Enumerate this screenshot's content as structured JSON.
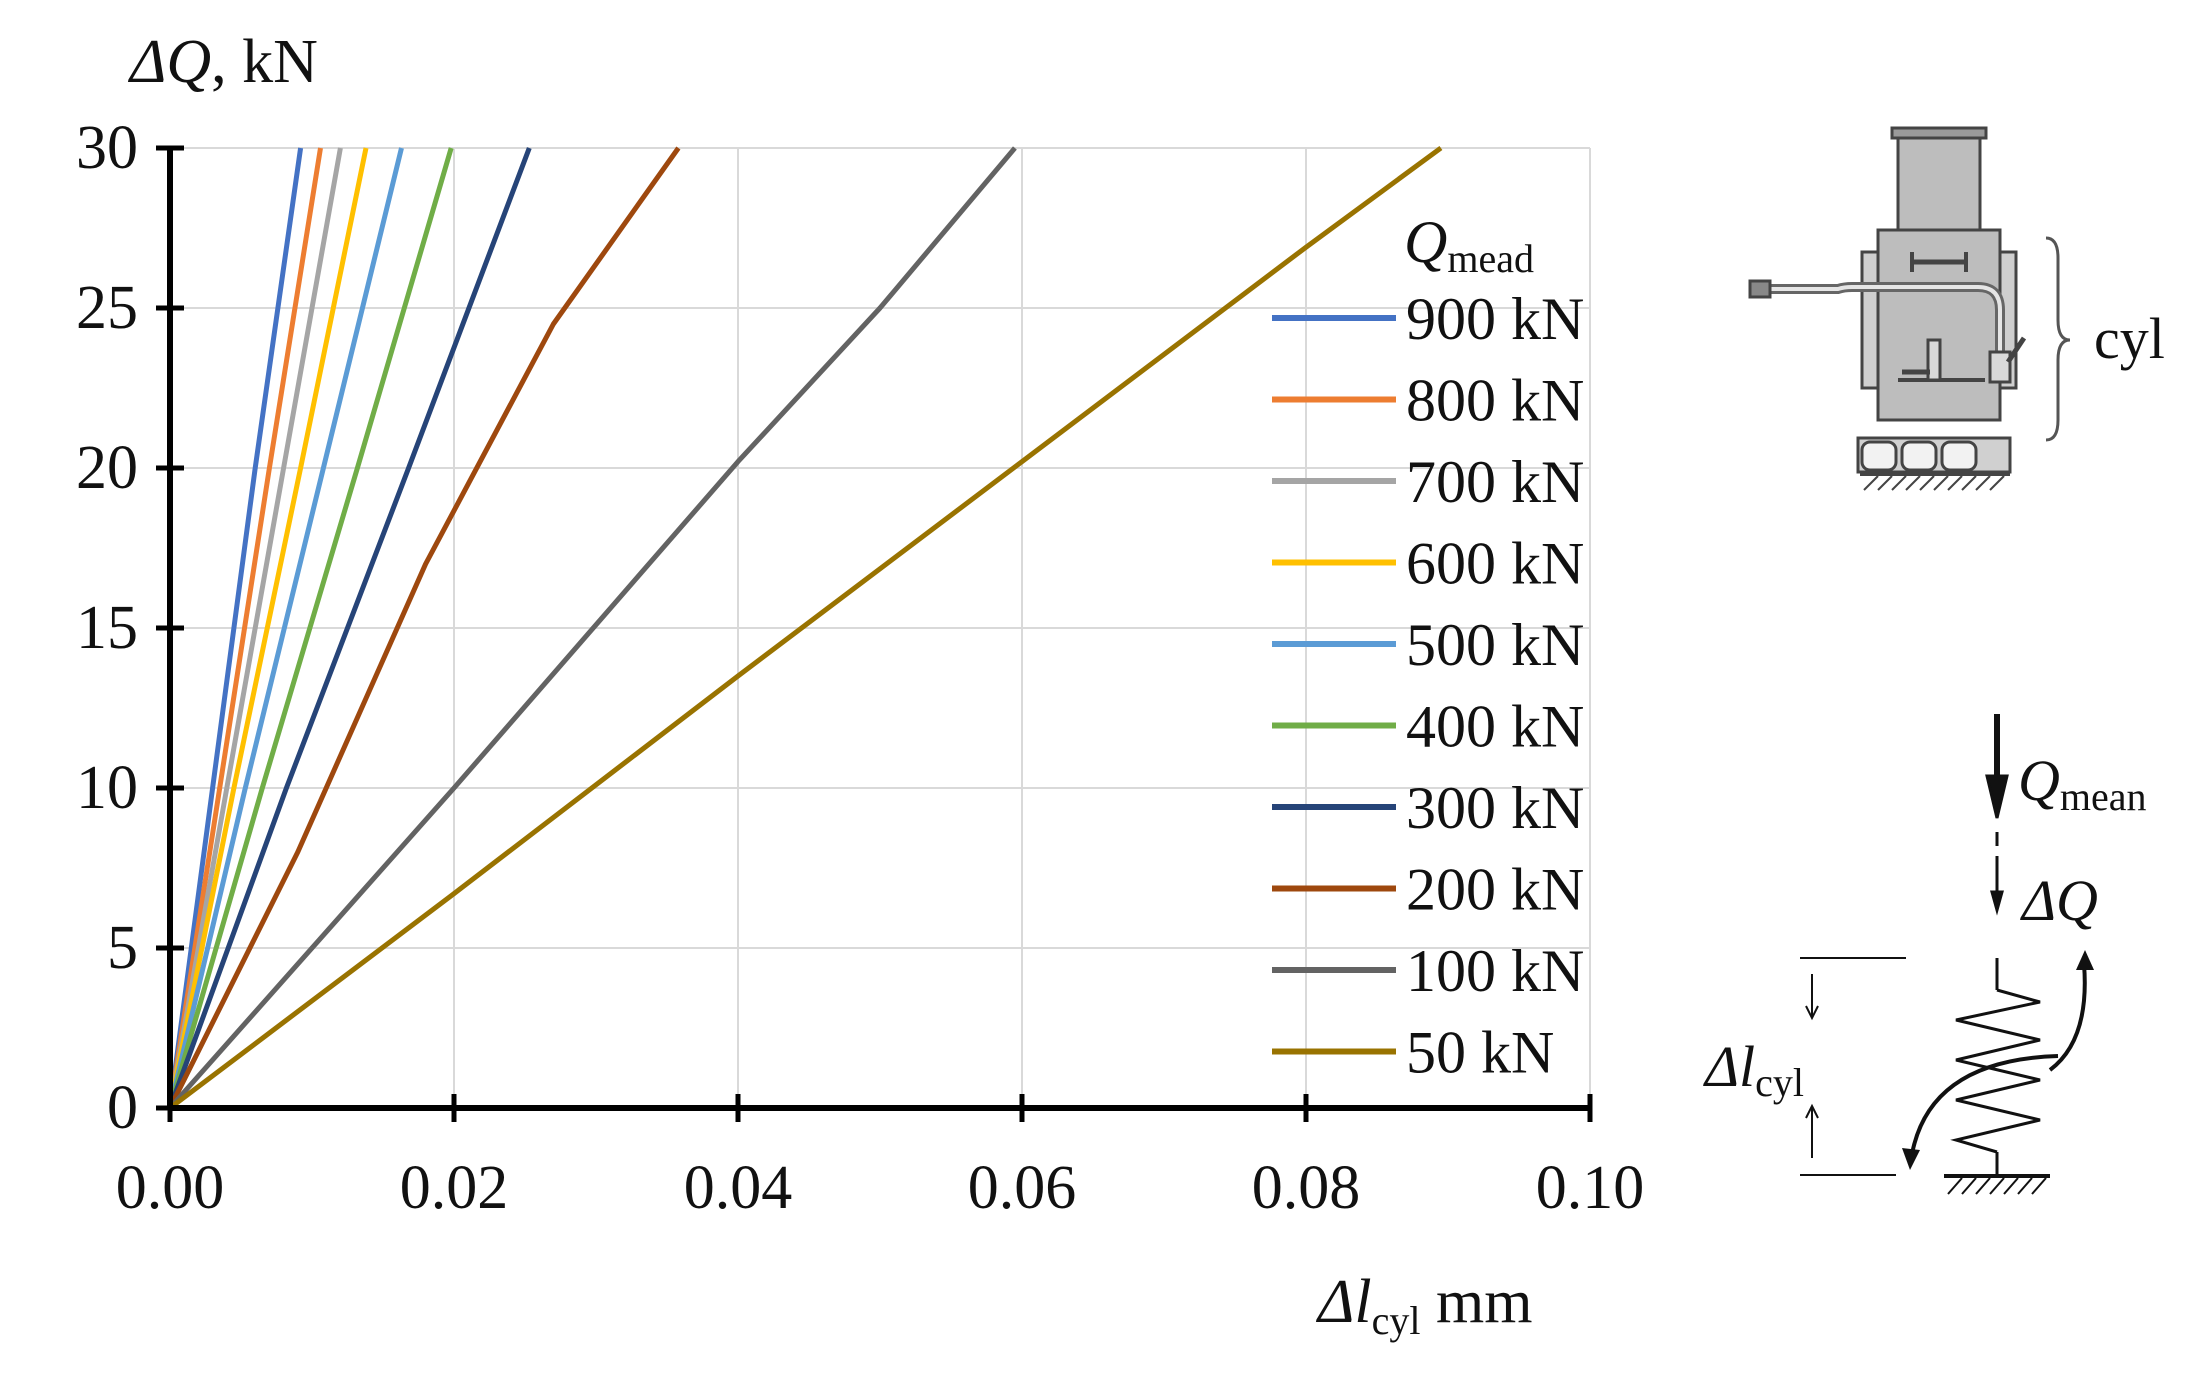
{
  "chart_data": {
    "type": "line",
    "title": "",
    "ylabel": {
      "symbol": "ΔQ",
      "unit": ", kN"
    },
    "xlabel": {
      "symbol": "Δl",
      "subscript": "cyl",
      "unit": " mm"
    },
    "xlim": [
      0,
      0.1
    ],
    "ylim": [
      0,
      30
    ],
    "xticks": [
      "0.00",
      "0.02",
      "0.04",
      "0.06",
      "0.08",
      "0.10"
    ],
    "yticks": [
      "0",
      "5",
      "10",
      "15",
      "20",
      "25",
      "30"
    ],
    "xtick_values": [
      0,
      0.02,
      0.04,
      0.06,
      0.08,
      0.1
    ],
    "ytick_values": [
      0,
      5,
      10,
      15,
      20,
      25,
      30
    ],
    "grid": true,
    "legend": {
      "title_symbol": "Q",
      "title_subscript": "mead",
      "position": "right"
    },
    "series": [
      {
        "name": "900 kN",
        "color": "#4472C4",
        "x": [
          0,
          0.003,
          0.006,
          0.0092
        ],
        "y": [
          0,
          10,
          20,
          30
        ]
      },
      {
        "name": "800 kN",
        "color": "#ED7D31",
        "x": [
          0,
          0.0035,
          0.007,
          0.0106
        ],
        "y": [
          0,
          10,
          20,
          30
        ]
      },
      {
        "name": "700 kN",
        "color": "#A5A5A5",
        "x": [
          0,
          0.004,
          0.008,
          0.012
        ],
        "y": [
          0,
          10,
          20,
          30
        ]
      },
      {
        "name": "600 kN",
        "color": "#FFC000",
        "x": [
          0,
          0.0045,
          0.0092,
          0.0138
        ],
        "y": [
          0,
          10,
          20,
          30
        ]
      },
      {
        "name": "500 kN",
        "color": "#5B9BD5",
        "x": [
          0,
          0.0053,
          0.0108,
          0.0163
        ],
        "y": [
          0,
          10,
          20,
          30
        ]
      },
      {
        "name": "400 kN",
        "color": "#70AD47",
        "x": [
          0,
          0.0065,
          0.0132,
          0.0198
        ],
        "y": [
          0,
          10,
          20,
          30
        ]
      },
      {
        "name": "300 kN",
        "color": "#264478",
        "x": [
          0,
          0.0082,
          0.0168,
          0.0253
        ],
        "y": [
          0,
          10,
          20,
          30
        ]
      },
      {
        "name": "200 kN",
        "color": "#9E480E",
        "x": [
          0,
          0.009,
          0.018,
          0.027,
          0.0358
        ],
        "y": [
          0,
          8,
          17,
          24.5,
          30
        ]
      },
      {
        "name": "100 kN",
        "color": "#636363",
        "x": [
          0,
          0.02,
          0.04,
          0.05,
          0.0595
        ],
        "y": [
          0,
          10,
          20.2,
          25,
          30
        ]
      },
      {
        "name": "50 kN",
        "color": "#997300",
        "x": [
          0,
          0.02,
          0.04,
          0.06,
          0.08,
          0.0895
        ],
        "y": [
          0,
          6.7,
          13.5,
          20.2,
          26.9,
          30
        ]
      }
    ]
  },
  "diagram": {
    "cyl_label": "cyl",
    "load_symbol": "Q",
    "load_subscript": "mean",
    "delta_q_label": "ΔQ",
    "delta_l_symbol": "Δl",
    "delta_l_subscript": "cyl"
  }
}
